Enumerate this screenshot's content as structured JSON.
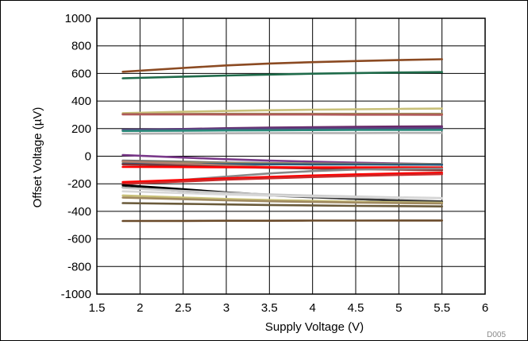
{
  "chart_data": {
    "type": "line",
    "title": "",
    "xlabel": "Supply Voltage (V)",
    "ylabel": "Offset Voltage (µV)",
    "figure_code": "D005",
    "xlim": [
      1.5,
      6
    ],
    "ylim": [
      -1000,
      1000
    ],
    "x_ticks": [
      1.5,
      2,
      2.5,
      3,
      3.5,
      4,
      4.5,
      5,
      5.5,
      6
    ],
    "x_tick_labels": [
      "1.5",
      "2",
      "2.5",
      "3",
      "3.5",
      "4",
      "4.5",
      "5",
      "5.5",
      "6"
    ],
    "y_ticks": [
      -1000,
      -800,
      -600,
      -400,
      -200,
      0,
      200,
      400,
      600,
      800,
      1000
    ],
    "y_tick_labels": [
      "-1000",
      "-800",
      "-600",
      "-400",
      "-200",
      "0",
      "200",
      "400",
      "600",
      "800",
      "1000"
    ],
    "grid": true,
    "legend": "none",
    "x": [
      1.8,
      2.5,
      3.0,
      3.5,
      4.0,
      4.5,
      5.0,
      5.5
    ],
    "series": [
      {
        "color": "#8b4a22",
        "values": [
          612,
          640,
          658,
          672,
          682,
          690,
          697,
          703
        ]
      },
      {
        "color": "#1f6b4a",
        "values": [
          565,
          577,
          585,
          592,
          598,
          603,
          607,
          610
        ]
      },
      {
        "color": "#c8c07a",
        "values": [
          312,
          322,
          328,
          333,
          337,
          340,
          343,
          345
        ]
      },
      {
        "color": "#9e8a55",
        "values": [
          305,
          306,
          307,
          307,
          307,
          307,
          307,
          307
        ]
      },
      {
        "color": "#b05a5a",
        "values": [
          303,
          303,
          302,
          302,
          302,
          301,
          301,
          300
        ]
      },
      {
        "color": "#6a2a6a",
        "values": [
          188,
          197,
          203,
          207,
          210,
          213,
          215,
          217
        ]
      },
      {
        "color": "#5a4080",
        "values": [
          192,
          196,
          198,
          200,
          201,
          202,
          203,
          204
        ]
      },
      {
        "color": "#2a8a7a",
        "values": [
          183,
          185,
          187,
          188,
          189,
          190,
          190,
          191
        ]
      },
      {
        "color": "#b0b0b0",
        "values": [
          163,
          165,
          166,
          167,
          168,
          168,
          169,
          169
        ]
      },
      {
        "color": "#7a3a8a",
        "values": [
          8,
          -10,
          -22,
          -32,
          -40,
          -47,
          -53,
          -58
        ]
      },
      {
        "color": "#6a6a6a",
        "values": [
          -32,
          -40,
          -46,
          -50,
          -54,
          -57,
          -60,
          -62
        ]
      },
      {
        "color": "#9a8e6a",
        "values": [
          -42,
          -46,
          -49,
          -51,
          -53,
          -55,
          -56,
          -57
        ]
      },
      {
        "color": "#2a5a7a",
        "values": [
          -55,
          -57,
          -58,
          -59,
          -60,
          -60,
          -61,
          -61
        ]
      },
      {
        "color": "#b08070",
        "values": [
          -38,
          -55,
          -67,
          -77,
          -85,
          -92,
          -98,
          -103
        ]
      },
      {
        "color": "#8a3030",
        "values": [
          -60,
          -70,
          -78,
          -84,
          -89,
          -93,
          -97,
          -100
        ]
      },
      {
        "color": "#ff0000",
        "values": [
          -78,
          -79,
          -80,
          -80,
          -81,
          -81,
          -81,
          -82
        ]
      },
      {
        "color": "#888888",
        "values": [
          -205,
          -172,
          -148,
          -125,
          -108,
          -97,
          -92,
          -90
        ]
      },
      {
        "color": "#ff0000",
        "values": [
          -188,
          -172,
          -160,
          -150,
          -140,
          -132,
          -125,
          -120
        ]
      },
      {
        "color": "#cc2a2a",
        "values": [
          -200,
          -183,
          -170,
          -160,
          -151,
          -143,
          -136,
          -130
        ]
      },
      {
        "color": "#000000",
        "values": [
          -210,
          -240,
          -262,
          -280,
          -295,
          -310,
          -322,
          -332
        ]
      },
      {
        "color": "#3a3a3a",
        "values": [
          -225,
          -252,
          -270,
          -285,
          -298,
          -310,
          -320,
          -328
        ]
      },
      {
        "color": "#c8c8c8",
        "values": [
          -230,
          -252,
          -266,
          -277,
          -286,
          -293,
          -299,
          -304
        ]
      },
      {
        "color": "#d8d8d8",
        "values": [
          -255,
          -268,
          -278,
          -286,
          -292,
          -298,
          -302,
          -306
        ]
      },
      {
        "color": "#c8c07a",
        "values": [
          -285,
          -300,
          -310,
          -318,
          -324,
          -330,
          -334,
          -338
        ]
      },
      {
        "color": "#a08a60",
        "values": [
          -300,
          -312,
          -320,
          -327,
          -332,
          -336,
          -340,
          -343
        ]
      },
      {
        "color": "#6a5a3a",
        "values": [
          -340,
          -345,
          -350,
          -354,
          -357,
          -360,
          -362,
          -364
        ]
      },
      {
        "color": "#6a4a2a",
        "values": [
          -470,
          -469,
          -468,
          -468,
          -467,
          -467,
          -466,
          -466
        ]
      }
    ]
  }
}
